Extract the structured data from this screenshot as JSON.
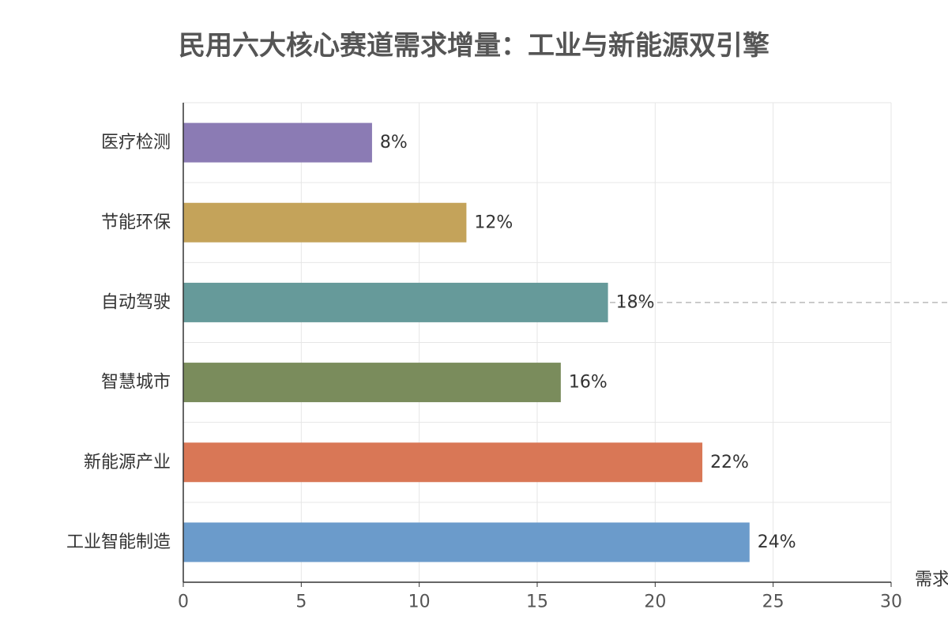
{
  "chart_data": {
    "type": "bar",
    "orientation": "horizontal",
    "title": "民用六大核心赛道需求增量：工业与新能源双引擎",
    "xlabel": "需求",
    "ylabel": "",
    "xlim": [
      0,
      30
    ],
    "x_ticks": [
      "0",
      "5",
      "10",
      "15",
      "20",
      "25",
      "30"
    ],
    "grid": true,
    "categories": [
      "医疗检测",
      "节能环保",
      "自动驾驶",
      "智慧城市",
      "新能源产业",
      "工业智能制造"
    ],
    "values": [
      8,
      12,
      18,
      16,
      22,
      24
    ],
    "value_labels": [
      "8%",
      "12%",
      "18%",
      "16%",
      "22%",
      "24%"
    ],
    "colors": [
      "#8b7bb4",
      "#c4a35a",
      "#669a9a",
      "#7a8c5c",
      "#d97756",
      "#6b9bcb"
    ],
    "highlight_category": "自动驾驶",
    "highlight_line_color": "#bbbbbb"
  }
}
